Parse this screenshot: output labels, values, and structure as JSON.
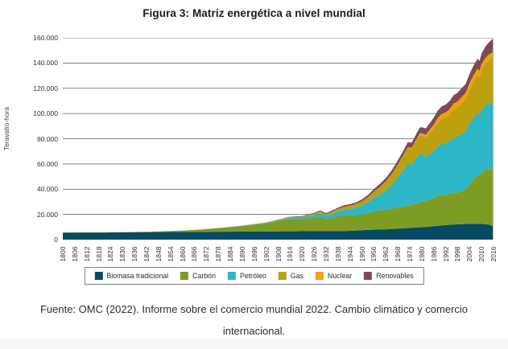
{
  "figure": {
    "title": "Figura 3: Matriz energética a nivel mundial",
    "source_note": "Fuente: OMC (2022). Informe sobre el comercio mundial 2022. Cambio climático y comercio internacional."
  },
  "chart_data": {
    "type": "area",
    "stacked": true,
    "title": "Figura 3: Matriz energética a nivel mundial",
    "xlabel": "",
    "ylabel": "Teravatio-hora",
    "ylim": [
      0,
      160000
    ],
    "xlim": [
      1800,
      2016
    ],
    "grid": "horizontal",
    "legend_position": "bottom",
    "y_ticks": [
      0,
      20000,
      40000,
      60000,
      80000,
      100000,
      120000,
      140000,
      160000
    ],
    "y_tick_labels": [
      "0",
      "20.000",
      "40.000",
      "60.000",
      "80.000",
      "100.000",
      "120.000",
      "140.000",
      "160.000"
    ],
    "x_tick_labels": [
      "1800",
      "1806",
      "1812",
      "1818",
      "1824",
      "1830",
      "1836",
      "1842",
      "1848",
      "1854",
      "1860",
      "1866",
      "1872",
      "1878",
      "1884",
      "1890",
      "1896",
      "1902",
      "1908",
      "1914",
      "1920",
      "1926",
      "1932",
      "1938",
      "1944",
      "1950",
      "1956",
      "1962",
      "1968",
      "1974",
      "1980",
      "1986",
      "1992",
      "1998",
      "2004",
      "2010",
      "2016"
    ],
    "x": [
      1800,
      1810,
      1820,
      1830,
      1840,
      1850,
      1860,
      1870,
      1880,
      1890,
      1900,
      1905,
      1910,
      1913,
      1916,
      1920,
      1923,
      1926,
      1929,
      1932,
      1935,
      1938,
      1941,
      1944,
      1947,
      1950,
      1953,
      1956,
      1959,
      1962,
      1965,
      1968,
      1971,
      1973,
      1975,
      1977,
      1979,
      1980,
      1982,
      1984,
      1986,
      1988,
      1990,
      1992,
      1994,
      1996,
      1998,
      2000,
      2002,
      2004,
      2006,
      2008,
      2009,
      2010,
      2012,
      2014,
      2016
    ],
    "units": "TWh",
    "series": [
      {
        "name": "Biomasa tradicional",
        "color": "#074a63",
        "values": [
          5600,
          5700,
          5700,
          5800,
          5900,
          6000,
          6100,
          6200,
          6300,
          6400,
          6500,
          6500,
          6600,
          6600,
          6600,
          6700,
          6700,
          6700,
          6800,
          6800,
          6800,
          6900,
          6900,
          7000,
          7200,
          7500,
          7700,
          7900,
          8000,
          8200,
          8400,
          8700,
          9000,
          9200,
          9400,
          9600,
          9800,
          9900,
          10100,
          10300,
          10600,
          10900,
          11200,
          11500,
          11800,
          12000,
          12200,
          12300,
          12400,
          12500,
          12600,
          12600,
          12600,
          12500,
          12300,
          11800,
          10700
        ]
      },
      {
        "name": "Carbón",
        "color": "#7d9c23",
        "values": [
          10,
          20,
          50,
          100,
          300,
          600,
          1100,
          1900,
          3000,
          4400,
          6000,
          7300,
          8700,
          9600,
          9800,
          9400,
          10200,
          10600,
          11500,
          9600,
          10600,
          11700,
          12600,
          12700,
          12400,
          12600,
          13400,
          14600,
          15300,
          15600,
          16200,
          16700,
          17000,
          17600,
          18000,
          18900,
          19800,
          20100,
          20400,
          21600,
          22600,
          23900,
          24300,
          24000,
          24400,
          25400,
          25200,
          26000,
          27400,
          31500,
          35200,
          38500,
          38200,
          40800,
          43500,
          44800,
          44000
        ]
      },
      {
        "name": "Petróleo",
        "color": "#2db6c6",
        "values": [
          0,
          0,
          0,
          0,
          0,
          0,
          10,
          50,
          100,
          200,
          400,
          500,
          700,
          900,
          1100,
          1400,
          1800,
          2200,
          2800,
          2600,
          3200,
          3900,
          4300,
          4600,
          5700,
          7000,
          8600,
          10700,
          12700,
          15500,
          19300,
          24000,
          29500,
          33500,
          32000,
          35500,
          38500,
          38000,
          35500,
          36000,
          37500,
          39000,
          40500,
          41000,
          42000,
          43500,
          44500,
          45500,
          46000,
          48000,
          49000,
          49500,
          48500,
          49500,
          51000,
          52000,
          53500
        ]
      },
      {
        "name": "Gas",
        "color": "#bda00f",
        "values": [
          0,
          0,
          0,
          0,
          0,
          0,
          0,
          0,
          50,
          100,
          200,
          300,
          400,
          500,
          600,
          700,
          900,
          1100,
          1400,
          1300,
          1600,
          1900,
          2300,
          2600,
          2900,
          3300,
          4000,
          4900,
          5800,
          6900,
          8100,
          9800,
          11500,
          12300,
          12500,
          13300,
          14500,
          14700,
          15000,
          16500,
          17200,
          18800,
          19800,
          20400,
          21000,
          22500,
          23000,
          24500,
          25500,
          27000,
          28500,
          30000,
          29500,
          31500,
          33000,
          34000,
          36000
        ]
      },
      {
        "name": "Nuclear",
        "color": "#f0a202",
        "values": [
          0,
          0,
          0,
          0,
          0,
          0,
          0,
          0,
          0,
          0,
          0,
          0,
          0,
          0,
          0,
          0,
          0,
          0,
          0,
          0,
          0,
          0,
          0,
          0,
          0,
          0,
          0,
          0,
          20,
          50,
          100,
          200,
          300,
          500,
          900,
          1200,
          1500,
          1700,
          2100,
          2600,
          3200,
          3700,
          3900,
          4000,
          4200,
          4500,
          4600,
          4800,
          4900,
          5000,
          5000,
          4900,
          4800,
          4900,
          4400,
          4500,
          4600
        ]
      },
      {
        "name": "Renovables",
        "color": "#7d4b53",
        "values": [
          0,
          0,
          0,
          0,
          0,
          0,
          0,
          0,
          20,
          50,
          100,
          150,
          250,
          300,
          350,
          400,
          500,
          600,
          700,
          750,
          850,
          1000,
          1100,
          1200,
          1300,
          1500,
          1700,
          2000,
          2300,
          2600,
          3000,
          3400,
          3800,
          4000,
          4200,
          4400,
          4700,
          4800,
          5000,
          5300,
          5500,
          5800,
          6000,
          6200,
          6500,
          6700,
          6900,
          7000,
          7100,
          7400,
          7700,
          8000,
          8100,
          8400,
          9000,
          9800,
          10800
        ]
      }
    ]
  },
  "style": {
    "gridline_color": "#5a5a5a",
    "baseline_color": "#c0c0c0",
    "plot_right_border_color": "#b5b5b5"
  }
}
